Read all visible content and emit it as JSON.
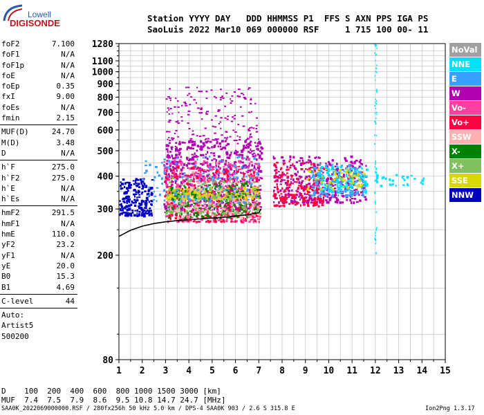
{
  "logo": {
    "top": "Lowell",
    "bottom": "DIGISONDE"
  },
  "header": {
    "line1": "Station YYYY DAY   DDD HHMMSS P1  FFS S AXN PPS IGA PS",
    "line2": "SaoLuis 2022 Mar10 069 000000 RSF     1 715 100 00- 11"
  },
  "params": [
    {
      "k": "foF2",
      "v": "7.100"
    },
    {
      "k": "foF1",
      "v": "N/A"
    },
    {
      "k": "foF1p",
      "v": "N/A"
    },
    {
      "k": "foE",
      "v": "N/A"
    },
    {
      "k": "foEp",
      "v": "0.35"
    },
    {
      "k": "fxI",
      "v": "9.00"
    },
    {
      "k": "foEs",
      "v": "N/A"
    },
    {
      "k": "fmin",
      "v": "2.15"
    },
    {
      "sep": true
    },
    {
      "k": "MUF(D)",
      "v": "24.70"
    },
    {
      "k": "M(D)",
      "v": "3.48"
    },
    {
      "k": "D",
      "v": "N/A"
    },
    {
      "sep": true
    },
    {
      "k": "h`F",
      "v": "275.0"
    },
    {
      "k": "h`F2",
      "v": "275.0"
    },
    {
      "k": "h`E",
      "v": "N/A"
    },
    {
      "k": "h`Es",
      "v": "N/A"
    },
    {
      "sep": true
    },
    {
      "k": "hmF2",
      "v": "291.5"
    },
    {
      "k": "hmF1",
      "v": "N/A"
    },
    {
      "k": "hmE",
      "v": "110.0"
    },
    {
      "k": "yF2",
      "v": "23.2"
    },
    {
      "k": "yF1",
      "v": "N/A"
    },
    {
      "k": "yE",
      "v": "20.0"
    },
    {
      "k": "B0",
      "v": "15.3"
    },
    {
      "k": "B1",
      "v": "4.69"
    },
    {
      "sep": true
    },
    {
      "k": "C-level",
      "v": "44"
    },
    {
      "sep": true
    },
    {
      "k": "Auto:",
      "v": ""
    },
    {
      "k": "Artist5",
      "v": ""
    },
    {
      "k": "500200",
      "v": ""
    }
  ],
  "legend": [
    {
      "label": "NoVal",
      "color": "#a0a0a0"
    },
    {
      "label": "NNE",
      "color": "#00e0ff"
    },
    {
      "label": "E",
      "color": "#3aa0ff"
    },
    {
      "label": "W",
      "color": "#b000b0"
    },
    {
      "label": "Vo-",
      "color": "#ff40a0"
    },
    {
      "label": "Vo+",
      "color": "#ff0040"
    },
    {
      "label": "SSW",
      "color": "#ffb0b0"
    },
    {
      "label": "X-",
      "color": "#008000"
    },
    {
      "label": "X+",
      "color": "#80c060"
    },
    {
      "label": "SSE",
      "color": "#d8d800"
    },
    {
      "label": "NNW",
      "color": "#0000c0"
    }
  ],
  "muf_table": {
    "d_row": "D    100  200  400  600  800 1000 1500 3000 [km]",
    "muf_row": "MUF  7.4  7.5  7.9  8.6  9.5 10.8 14.7 24.7 [MHz]"
  },
  "footer": {
    "left": "SAA0K_2022069000000.RSF / 280fx256h 50 kHz 5.0 km / DPS-4 SAA0K 903 / 2.6 S 315.8 E",
    "right": "Ion2Png 1.3.17"
  },
  "chart_data": {
    "type": "scatter",
    "title": "",
    "xlabel": "",
    "ylabel": "",
    "xlim": [
      1,
      15
    ],
    "ylim": [
      80,
      1280
    ],
    "y_scale": "log",
    "x_ticks": [
      1,
      2,
      3,
      4,
      5,
      6,
      7,
      8,
      9,
      10,
      11,
      12,
      13,
      14,
      15
    ],
    "y_ticks": [
      80,
      200,
      300,
      400,
      500,
      600,
      700,
      800,
      900,
      1000,
      1100,
      1280
    ],
    "grid": true,
    "trace": {
      "name": "",
      "x": [
        1.0,
        1.5,
        2.0,
        2.5,
        3.0,
        3.5,
        4.0,
        4.5,
        5.0,
        5.5,
        6.0,
        6.5,
        7.0,
        7.1
      ],
      "y": [
        236,
        249,
        258,
        264,
        268,
        271,
        273,
        275,
        277,
        279,
        282,
        285,
        290,
        300
      ]
    },
    "series": [
      {
        "name": "NNW",
        "x_range": [
          1.0,
          2.4
        ],
        "y_range": [
          285,
          395
        ],
        "density": 220
      },
      {
        "name": "W",
        "x_range": [
          2.9,
          7.1
        ],
        "y_range": [
          300,
          560
        ],
        "density": 700
      },
      {
        "name": "Vo-",
        "x_range": [
          2.9,
          7.0
        ],
        "y_range": [
          270,
          470
        ],
        "density": 380
      },
      {
        "name": "Vo+",
        "x_range": [
          2.9,
          7.0
        ],
        "y_range": [
          270,
          440
        ],
        "density": 260
      },
      {
        "name": "SSE",
        "x_range": [
          3.0,
          7.0
        ],
        "y_range": [
          330,
          365
        ],
        "density": 250
      },
      {
        "name": "X-",
        "x_range": [
          3.0,
          7.0
        ],
        "y_range": [
          280,
          380
        ],
        "density": 160
      },
      {
        "name": "X+",
        "x_range": [
          3.0,
          7.0
        ],
        "y_range": [
          290,
          400
        ],
        "density": 140
      },
      {
        "name": "SSW",
        "x_range": [
          3.0,
          7.0
        ],
        "y_range": [
          280,
          420
        ],
        "density": 110
      },
      {
        "name": "E",
        "x_range": [
          2.0,
          7.0
        ],
        "y_range": [
          320,
          480
        ],
        "density": 120
      },
      {
        "name": "W",
        "x_range": [
          7.6,
          11.6
        ],
        "y_range": [
          320,
          480
        ],
        "density": 360
      },
      {
        "name": "Vo+",
        "x_range": [
          7.6,
          9.8
        ],
        "y_range": [
          310,
          460
        ],
        "density": 180
      },
      {
        "name": "E",
        "x_range": [
          9.2,
          11.6
        ],
        "y_range": [
          340,
          450
        ],
        "density": 160
      },
      {
        "name": "NNE",
        "x_range": [
          9.5,
          11.6
        ],
        "y_range": [
          350,
          440
        ],
        "density": 120
      },
      {
        "name": "SSE",
        "x_range": [
          9.0,
          11.6
        ],
        "y_range": [
          360,
          430
        ],
        "density": 60
      },
      {
        "name": "W",
        "x_range": [
          3.0,
          6.9
        ],
        "y_range": [
          560,
          880
        ],
        "density": 150
      },
      {
        "name": "NNE",
        "x_range": [
          11.95,
          12.05
        ],
        "y_range": [
          200,
          1280
        ],
        "density": 60
      },
      {
        "name": "NNE",
        "x_range": [
          12.0,
          14.1
        ],
        "y_range": [
          370,
          410
        ],
        "density": 30
      }
    ]
  }
}
